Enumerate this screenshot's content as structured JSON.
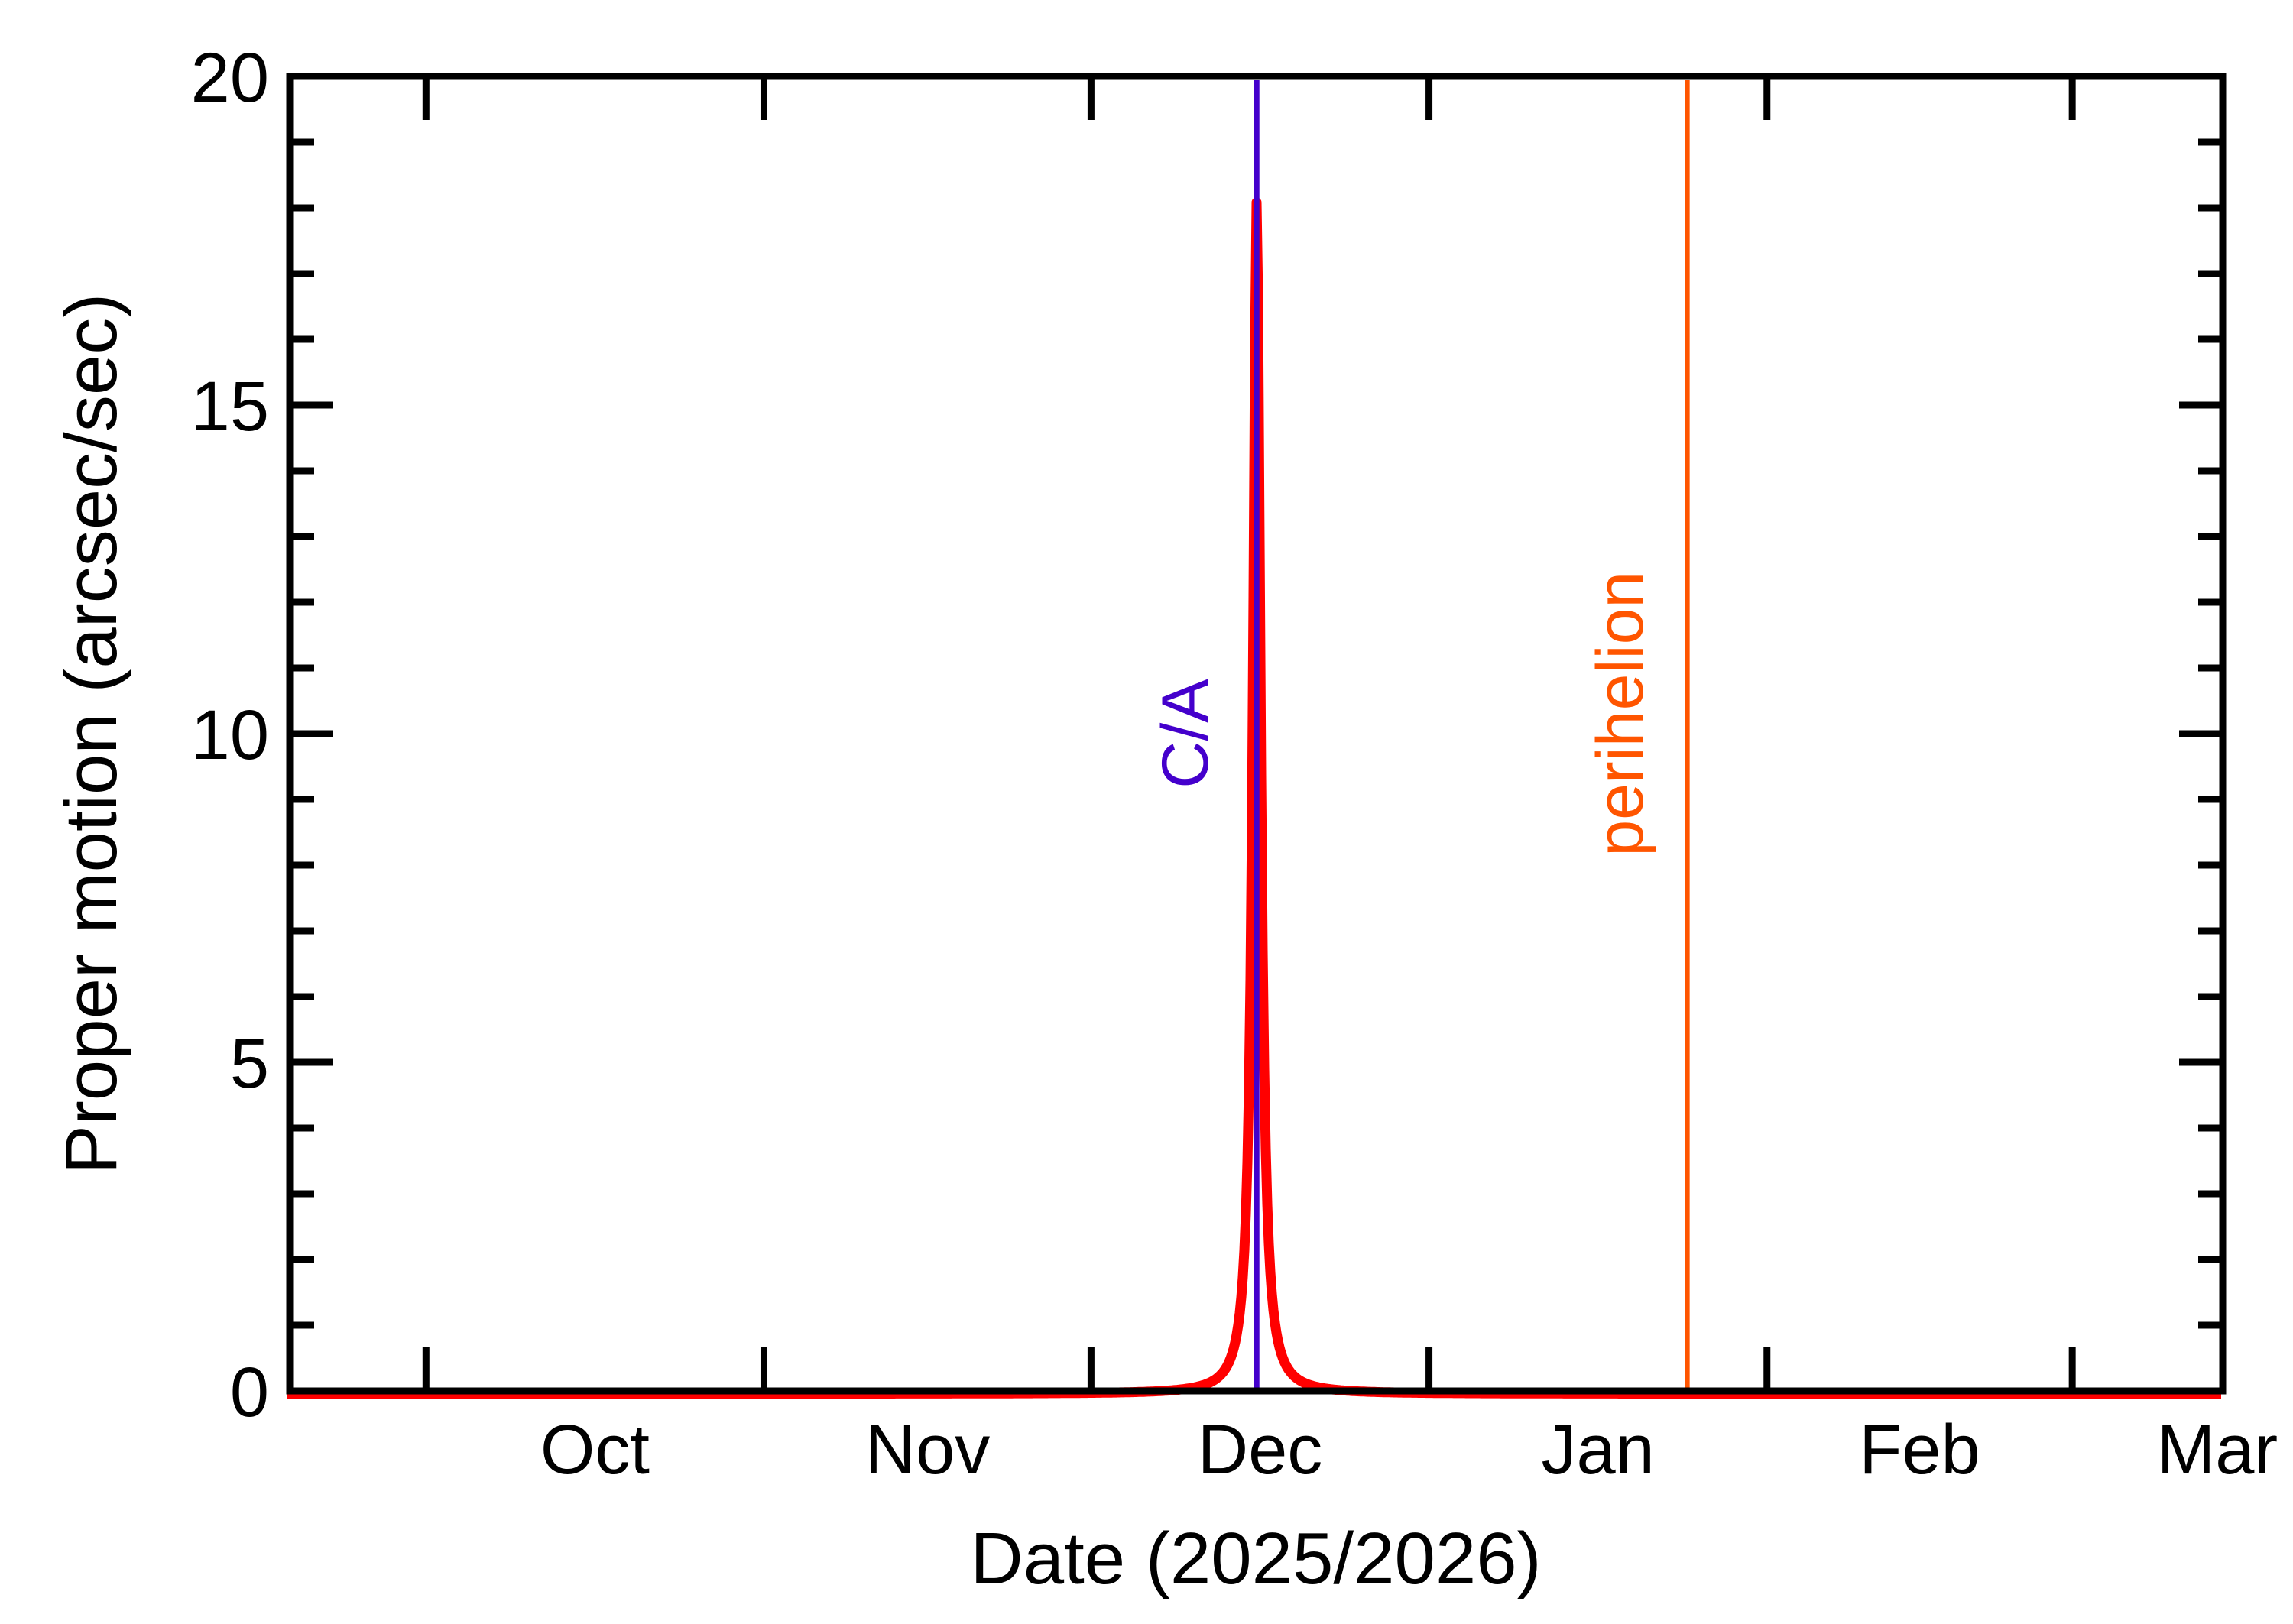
{
  "page": {
    "background": "#ffffff",
    "foreground": "#000000"
  },
  "chart_data": {
    "type": "line",
    "title": "",
    "xlabel": "Date (2025/2026)",
    "ylabel": "Proper motion (arcsec/sec)",
    "legend": "none",
    "grid": false,
    "ylim": [
      0,
      20
    ],
    "x_axis": {
      "start_edge_date": "2025-09-18",
      "end_edge_date": "2026-03-15",
      "domain_days": 177.3,
      "months": [
        {
          "label": "Oct",
          "tick_day": 12.5,
          "label_day": 28.0
        },
        {
          "label": "Nov",
          "tick_day": 43.5,
          "label_day": 58.5
        },
        {
          "label": "Dec",
          "tick_day": 73.5,
          "label_day": 89.0
        },
        {
          "label": "Jan",
          "tick_day": 104.5,
          "label_day": 120.0
        },
        {
          "label": "Feb",
          "tick_day": 135.5,
          "label_day": 149.5
        },
        {
          "label": "Mar",
          "tick_day": 163.5,
          "label_day": 176.8
        }
      ]
    },
    "y_axis": {
      "min": 0,
      "max": 20,
      "major_step": 5,
      "minor_step": 1,
      "tick_labels": [
        {
          "value": 0,
          "label": "0"
        },
        {
          "value": 5,
          "label": "5"
        },
        {
          "value": 10,
          "label": "10"
        },
        {
          "value": 15,
          "label": "15"
        },
        {
          "value": 20,
          "label": "20"
        }
      ]
    },
    "series": [
      {
        "name": "proper-motion",
        "color": "#ff0000",
        "baseline_value": 0.05,
        "peak": {
          "day": 88.7,
          "date": "2025-12-16",
          "value": 18.2,
          "gamma_days": 0.42
        },
        "key_points": [
          {
            "date": "2025-09-18",
            "value": 0.05
          },
          {
            "date": "2025-10-01",
            "value": 0.05
          },
          {
            "date": "2025-11-01",
            "value": 0.06
          },
          {
            "date": "2025-12-01",
            "value": 0.1
          },
          {
            "date": "2025-12-13",
            "value": 0.4
          },
          {
            "date": "2025-12-16",
            "value": 18.2
          },
          {
            "date": "2025-12-19",
            "value": 0.4
          },
          {
            "date": "2026-01-01",
            "value": 0.1
          },
          {
            "date": "2026-02-01",
            "value": 0.05
          },
          {
            "date": "2026-03-14",
            "value": 0.05
          }
        ]
      }
    ],
    "annotations": [
      {
        "type": "vline",
        "label": "C/A",
        "day": 88.7,
        "date": "2025-12-16",
        "color": "#4400cc",
        "label_day": 84.2,
        "label_value": 10.0
      },
      {
        "type": "vline",
        "label": "perihelion",
        "day": 128.2,
        "date": "2026-01-25",
        "color": "#ff5500",
        "label_day": 124.1,
        "label_value": 10.3
      }
    ]
  }
}
